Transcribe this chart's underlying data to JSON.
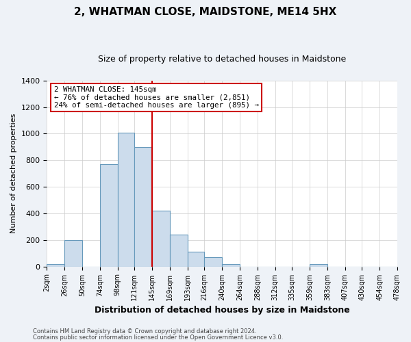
{
  "title": "2, WHATMAN CLOSE, MAIDSTONE, ME14 5HX",
  "subtitle": "Size of property relative to detached houses in Maidstone",
  "xlabel": "Distribution of detached houses by size in Maidstone",
  "ylabel": "Number of detached properties",
  "bar_edges": [
    2,
    26,
    50,
    74,
    98,
    121,
    145,
    169,
    193,
    216,
    240,
    264,
    288,
    312,
    335,
    359,
    383,
    407,
    430,
    454,
    478
  ],
  "bar_heights": [
    20,
    200,
    0,
    770,
    1010,
    900,
    420,
    240,
    110,
    70,
    20,
    0,
    0,
    0,
    0,
    20,
    0,
    0,
    0,
    0
  ],
  "tick_labels": [
    "2sqm",
    "26sqm",
    "50sqm",
    "74sqm",
    "98sqm",
    "121sqm",
    "145sqm",
    "169sqm",
    "193sqm",
    "216sqm",
    "240sqm",
    "264sqm",
    "288sqm",
    "312sqm",
    "335sqm",
    "359sqm",
    "383sqm",
    "407sqm",
    "430sqm",
    "454sqm",
    "478sqm"
  ],
  "bar_color": "#ccdcec",
  "bar_edge_color": "#6699bb",
  "property_line_x": 145,
  "annotation_line1": "2 WHATMAN CLOSE: 145sqm",
  "annotation_line2": "← 76% of detached houses are smaller (2,851)",
  "annotation_line3": "24% of semi-detached houses are larger (895) →",
  "annotation_box_color": "#ffffff",
  "annotation_box_edge_color": "#cc0000",
  "vline_color": "#cc0000",
  "ylim": [
    0,
    1400
  ],
  "footer1": "Contains HM Land Registry data © Crown copyright and database right 2024.",
  "footer2": "Contains public sector information licensed under the Open Government Licence v3.0.",
  "background_color": "#eef2f7",
  "plot_background_color": "#ffffff",
  "grid_color": "#cccccc",
  "title_fontsize": 11,
  "subtitle_fontsize": 9,
  "xlabel_fontsize": 9,
  "ylabel_fontsize": 8
}
